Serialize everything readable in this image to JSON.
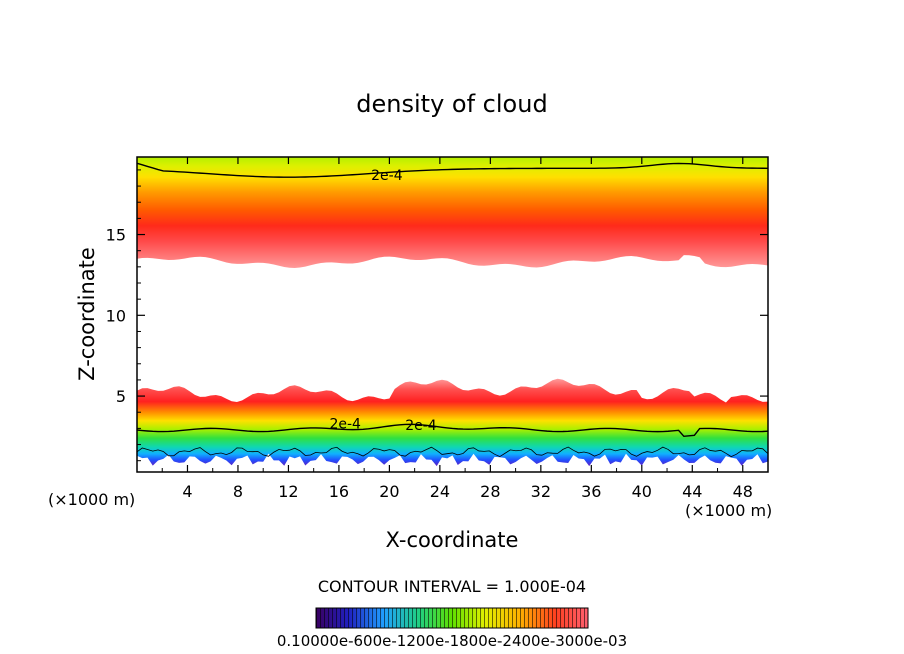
{
  "chart_data": {
    "type": "heatmap",
    "title": "density of cloud",
    "xlabel": "X-coordinate",
    "ylabel": "Z-coordinate",
    "x_unit_left": "(×1000 m)",
    "x_unit_right": "(×1000 m)",
    "xlim": [
      0,
      50
    ],
    "ylim": [
      0.3,
      19.8
    ],
    "x_ticks": [
      4,
      8,
      12,
      16,
      20,
      24,
      28,
      32,
      36,
      40,
      44,
      48
    ],
    "y_ticks": [
      5,
      10,
      15
    ],
    "contour_interval_text": "CONTOUR INTERVAL = 1.000E-04",
    "contour_labels": [
      {
        "text": "2e-4",
        "x": 19.8,
        "y": 18.7
      },
      {
        "text": "2e-4",
        "x": 16.5,
        "y": 3.3
      },
      {
        "text": "2e-4",
        "x": 22.5,
        "y": 3.2
      }
    ],
    "colorbar": {
      "min": 0.1,
      "max": 0.35,
      "label_text": "0.10000e-600e-1200e-1800e-2400e-3000e-03"
    },
    "layers": [
      {
        "name": "upper",
        "z_bottom": 13.3,
        "z_peak": 15.2,
        "z_top": 19.8,
        "peak_value": 0.35
      },
      {
        "name": "lower",
        "z_bottom": 0.7,
        "z_peak": 4.2,
        "z_top": 5.3,
        "peak_value": 0.3
      }
    ]
  }
}
